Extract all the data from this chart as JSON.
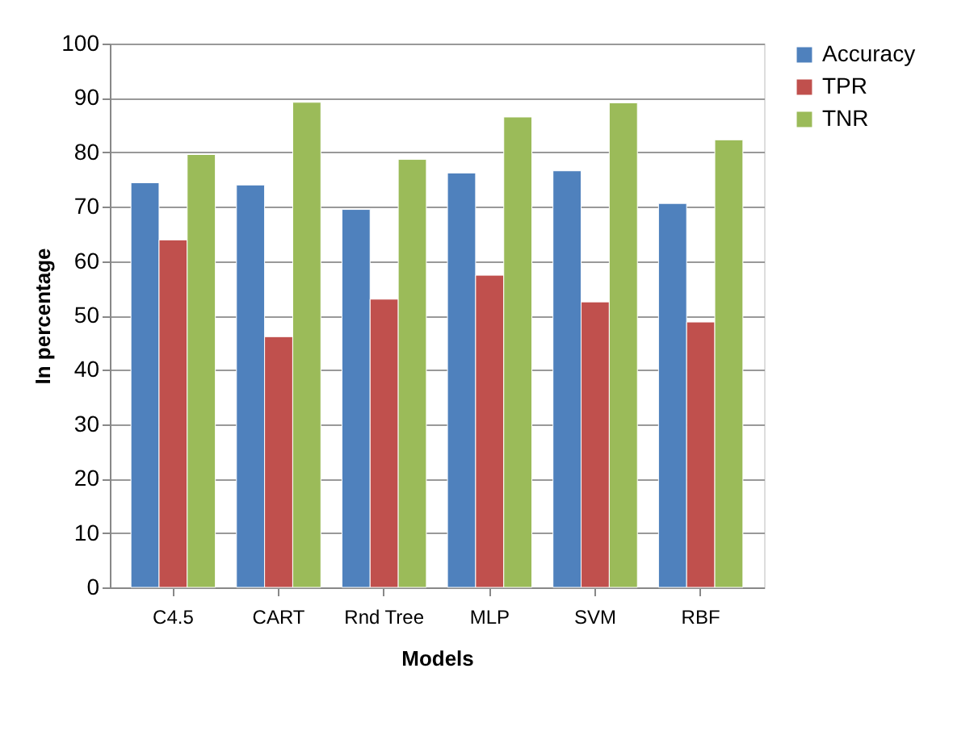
{
  "chart_data": {
    "type": "bar",
    "xlabel": "Models",
    "ylabel": "In percentage",
    "categories": [
      "C4.5",
      "CART",
      "Rnd Tree",
      "MLP",
      "SVM",
      "RBF"
    ],
    "series": [
      {
        "name": "Accuracy",
        "color": "#4f81bd",
        "values": [
          74.4,
          74.0,
          69.5,
          76.2,
          76.6,
          70.6
        ]
      },
      {
        "name": "TPR",
        "color": "#c0504d",
        "values": [
          63.9,
          46.1,
          53.0,
          57.4,
          52.5,
          48.8
        ]
      },
      {
        "name": "TNR",
        "color": "#9bbb59",
        "values": [
          79.6,
          89.2,
          78.7,
          86.5,
          89.1,
          82.3
        ]
      }
    ],
    "ylim": [
      0,
      100
    ],
    "yticks": [
      0,
      10,
      20,
      30,
      40,
      50,
      60,
      70,
      80,
      90,
      100
    ],
    "grid": "y",
    "legend": "right"
  }
}
